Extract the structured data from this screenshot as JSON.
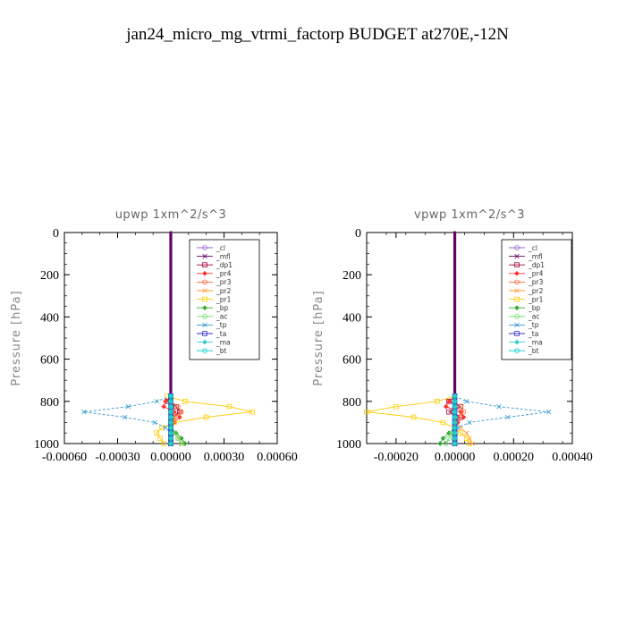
{
  "title": "jan24_micro_mg_vtrmi_factorp  BUDGET at270E,-12N",
  "legend_entries": [
    "_cl",
    "_mfl",
    "_dp1",
    "_pr4",
    "_pr3",
    "_pr2",
    "_pr1",
    "_bp",
    "_ac",
    "_tp",
    "_ta",
    "_ma",
    "_bt"
  ],
  "series_colors": {
    "_cl": "#9966cc",
    "_mfl": "#660066",
    "_dp1": "#990033",
    "_pr4": "#ff3333",
    "_pr3": "#ff6633",
    "_pr2": "#ff9933",
    "_pr1": "#ffcc00",
    "_bp": "#33aa33",
    "_ac": "#66dd66",
    "_tp": "#3399cc",
    "_ta": "#3333cc",
    "_ma": "#33cccc",
    "_bt": "#00cccc"
  },
  "chart_data": [
    {
      "type": "line",
      "title": "upwp   1xm^2/s^3",
      "ylabel": "Pressure [hPa]",
      "xlabel": "",
      "xlim": [
        -0.0006,
        0.0006
      ],
      "ylim": [
        1000,
        0
      ],
      "x_ticks": [
        "-0.00060",
        "-0.00030",
        "0.00000",
        "0.00030",
        "0.00060"
      ],
      "y_ticks": [
        "0",
        "200",
        "400",
        "600",
        "800",
        "1000"
      ],
      "legend_placement": "top-right",
      "pressure": [
        775,
        800,
        825,
        850,
        875,
        900,
        925,
        950,
        975,
        1000
      ],
      "series": [
        {
          "name": "_cl",
          "values": [
            0,
            0,
            0,
            0,
            0,
            0,
            0,
            0,
            0,
            0
          ]
        },
        {
          "name": "_mfl",
          "values": [
            0,
            0,
            0,
            0,
            0,
            0,
            0,
            0,
            0,
            0
          ]
        },
        {
          "name": "_dp1",
          "values": [
            0,
            -2e-05,
            3e-05,
            5e-05,
            1e-05,
            0,
            0,
            0,
            0,
            0
          ]
        },
        {
          "name": "_pr4",
          "values": [
            0,
            -3e-05,
            -4e-05,
            2e-05,
            5e-05,
            2e-05,
            0,
            0,
            0,
            0
          ]
        },
        {
          "name": "_pr3",
          "values": [
            0,
            0,
            4e-05,
            6e-05,
            2e-05,
            0,
            0,
            0,
            0,
            0
          ]
        },
        {
          "name": "_pr2",
          "values": [
            0,
            0,
            0,
            1e-05,
            2e-05,
            1e-05,
            0,
            2e-05,
            4e-05,
            6e-05
          ]
        },
        {
          "name": "_pr1",
          "values": [
            -2e-05,
            8e-05,
            0.00033,
            0.00046,
            0.0002,
            2e-05,
            -5e-05,
            -8e-05,
            -6e-05,
            -4e-05
          ]
        },
        {
          "name": "_bp",
          "values": [
            0,
            0,
            0,
            0,
            0,
            0,
            0,
            3e-05,
            6e-05,
            8e-05
          ]
        },
        {
          "name": "_ac",
          "values": [
            0,
            0,
            0,
            0,
            0,
            0,
            0,
            2e-05,
            4e-05,
            6e-05
          ]
        },
        {
          "name": "_tp",
          "values": [
            0,
            -8e-05,
            -0.00024,
            -0.00049,
            -0.00026,
            -9e-05,
            -3e-05,
            0,
            0,
            0
          ]
        },
        {
          "name": "_ta",
          "values": [
            0,
            0,
            0,
            0,
            0,
            0,
            0,
            0,
            0,
            0
          ]
        },
        {
          "name": "_ma",
          "values": [
            0,
            0,
            0,
            0,
            0,
            0,
            0,
            0,
            0,
            0
          ]
        },
        {
          "name": "_bt",
          "values": [
            0,
            0,
            0,
            0,
            0,
            0,
            0,
            0,
            0,
            0
          ]
        }
      ]
    },
    {
      "type": "line",
      "title": "vpwp   1xm^2/s^3",
      "ylabel": "Pressure [hPa]",
      "xlabel": "",
      "xlim": [
        -0.0003,
        0.0004
      ],
      "ylim": [
        1000,
        0
      ],
      "x_ticks": [
        "-0.00020",
        "0.00000",
        "0.00020",
        "0.00040"
      ],
      "y_ticks": [
        "0",
        "200",
        "400",
        "600",
        "800",
        "1000"
      ],
      "legend_placement": "top-right",
      "pressure": [
        775,
        800,
        825,
        850,
        875,
        900,
        925,
        950,
        975,
        1000
      ],
      "series": [
        {
          "name": "_cl",
          "values": [
            0,
            0,
            0,
            0,
            0,
            0,
            0,
            0,
            0,
            0
          ]
        },
        {
          "name": "_mfl",
          "values": [
            0,
            0,
            0,
            0,
            0,
            0,
            0,
            0,
            0,
            0
          ]
        },
        {
          "name": "_dp1",
          "values": [
            0,
            -2e-05,
            2e-05,
            -2e-05,
            2e-05,
            0,
            0,
            0,
            0,
            0
          ]
        },
        {
          "name": "_pr4",
          "values": [
            0,
            -2e-05,
            -3e-05,
            2e-05,
            3e-05,
            1e-05,
            0,
            0,
            0,
            0
          ]
        },
        {
          "name": "_pr3",
          "values": [
            0,
            0,
            2e-05,
            3e-05,
            1e-05,
            0,
            0,
            0,
            0,
            0
          ]
        },
        {
          "name": "_pr2",
          "values": [
            0,
            0,
            0,
            0,
            0,
            0,
            2e-05,
            4e-05,
            5e-05,
            6e-05
          ]
        },
        {
          "name": "_pr1",
          "values": [
            0,
            -6e-05,
            -0.0002,
            -0.0003,
            -0.00014,
            -4e-05,
            0,
            2e-05,
            4e-05,
            5e-05
          ]
        },
        {
          "name": "_bp",
          "values": [
            0,
            0,
            0,
            0,
            0,
            0,
            0,
            -2e-05,
            -4e-05,
            -5e-05
          ]
        },
        {
          "name": "_ac",
          "values": [
            0,
            0,
            0,
            0,
            0,
            0,
            0,
            -1e-05,
            -2e-05,
            -3e-05
          ]
        },
        {
          "name": "_tp",
          "values": [
            0,
            4e-05,
            0.00015,
            0.00032,
            0.00018,
            5e-05,
            1e-05,
            0,
            0,
            0
          ]
        },
        {
          "name": "_ta",
          "values": [
            0,
            0,
            0,
            0,
            0,
            0,
            0,
            0,
            0,
            0
          ]
        },
        {
          "name": "_ma",
          "values": [
            0,
            0,
            0,
            0,
            0,
            0,
            0,
            0,
            0,
            0
          ]
        },
        {
          "name": "_bt",
          "values": [
            0,
            0,
            0,
            0,
            0,
            0,
            0,
            0,
            0,
            0
          ]
        }
      ]
    }
  ]
}
